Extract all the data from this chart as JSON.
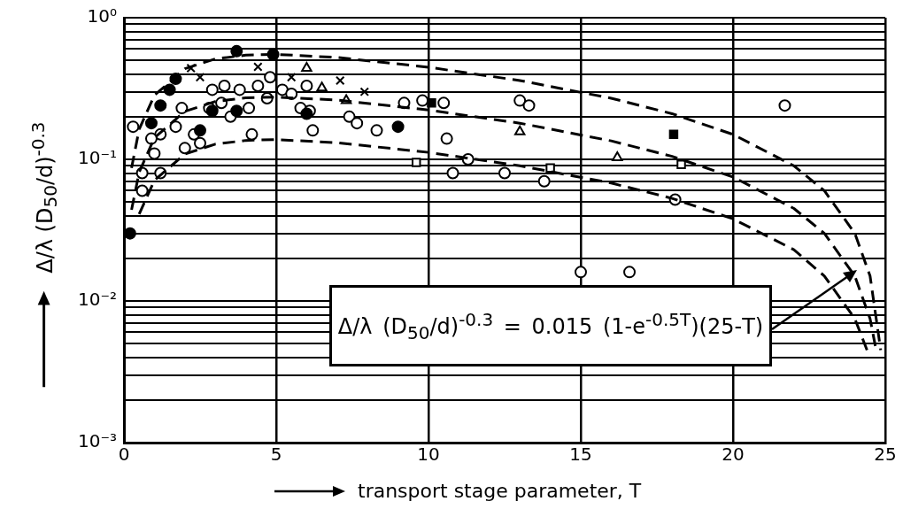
{
  "chart_data": {
    "type": "scatter",
    "xlabel": "transport stage parameter, T",
    "ylabel": "Δ/λ (D$_{50}$/d)$^{-0.3}$",
    "xlim": [
      0,
      25
    ],
    "xticks": [
      0,
      5,
      10,
      15,
      20,
      25
    ],
    "ylim": [
      0.001,
      1
    ],
    "log": "y",
    "grid": true,
    "yticks": [
      {
        "value": 0.001,
        "label": "10⁻³"
      },
      {
        "value": 0.002,
        "label": null
      },
      {
        "value": 0.003,
        "label": null
      },
      {
        "value": 0.004,
        "label": null
      },
      {
        "value": 0.005,
        "label": null
      },
      {
        "value": 0.006,
        "label": null
      },
      {
        "value": 0.007,
        "label": null
      },
      {
        "value": 0.008,
        "label": null
      },
      {
        "value": 0.009,
        "label": null
      },
      {
        "value": 0.01,
        "label": "10⁻²"
      },
      {
        "value": 0.02,
        "label": null
      },
      {
        "value": 0.03,
        "label": null
      },
      {
        "value": 0.04,
        "label": null
      },
      {
        "value": 0.05,
        "label": null
      },
      {
        "value": 0.06,
        "label": null
      },
      {
        "value": 0.07,
        "label": null
      },
      {
        "value": 0.08,
        "label": null
      },
      {
        "value": 0.09,
        "label": null
      },
      {
        "value": 0.1,
        "label": "10⁻¹"
      },
      {
        "value": 0.2,
        "label": null
      },
      {
        "value": 0.3,
        "label": null
      },
      {
        "value": 0.4,
        "label": null
      },
      {
        "value": 0.5,
        "label": null
      },
      {
        "value": 0.6,
        "label": null
      },
      {
        "value": 0.7,
        "label": null
      },
      {
        "value": 0.8,
        "label": null
      },
      {
        "value": 0.9,
        "label": null
      },
      {
        "value": 1,
        "label": "10⁰"
      }
    ],
    "annotations": [
      "Δ/λ (D$_{50}$/d)$^{-0.3}$ = 0.015 (1-e$^{-0.5T}$)(25-T)"
    ],
    "series": [
      {
        "marker": "circle",
        "color": "#ffffff",
        "x": [
          0.3,
          0.6,
          0.6,
          1.2,
          1.0,
          1.2,
          0.9,
          1.7,
          2.0,
          1.9,
          2.3,
          2.5,
          2.8,
          2.9,
          3.2,
          3.3,
          3.5,
          3.8,
          4.1,
          4.2,
          4.4,
          4.7,
          4.8,
          5.2,
          5.5,
          5.8,
          6.1,
          6.0,
          6.2,
          7.4,
          7.65,
          8.3,
          9.2,
          9.8,
          10.5,
          10.6,
          10.8,
          11.3,
          12.5,
          13.8,
          13.0,
          13.3,
          15.0,
          16.6,
          18.1,
          21.7
        ],
        "values": [
          0.17,
          0.08,
          0.06,
          0.08,
          0.11,
          0.15,
          0.14,
          0.17,
          0.12,
          0.23,
          0.15,
          0.13,
          0.23,
          0.31,
          0.25,
          0.33,
          0.2,
          0.31,
          0.23,
          0.15,
          0.33,
          0.27,
          0.38,
          0.31,
          0.29,
          0.23,
          0.22,
          0.33,
          0.16,
          0.2,
          0.18,
          0.16,
          0.25,
          0.26,
          0.25,
          0.14,
          0.08,
          0.1,
          0.08,
          0.07,
          0.26,
          0.24,
          0.016,
          0.016,
          0.052,
          0.24
        ]
      },
      {
        "marker": "circle",
        "color": "#000000",
        "x": [
          0.2,
          0.9,
          1.2,
          1.5,
          1.7,
          2.5,
          2.9,
          3.7,
          3.7,
          4.9,
          6.0,
          9.0
        ],
        "values": [
          0.03,
          0.18,
          0.24,
          0.31,
          0.37,
          0.16,
          0.22,
          0.22,
          0.58,
          0.55,
          0.21,
          0.17
        ]
      },
      {
        "marker": "cross",
        "color": "#000000",
        "x": [
          2.2,
          2.5,
          4.4,
          5.5,
          7.1,
          7.9
        ],
        "values": [
          0.44,
          0.38,
          0.45,
          0.38,
          0.36,
          0.3
        ]
      },
      {
        "marker": "triangle",
        "color": "#ffffff",
        "x": [
          6.0,
          6.5,
          7.3,
          13.0,
          16.2
        ],
        "values": [
          0.44,
          0.32,
          0.26,
          0.157,
          0.103
        ]
      },
      {
        "marker": "square",
        "color": "#ffffff",
        "x": [
          9.6,
          14.0,
          18.3
        ],
        "values": [
          0.095,
          0.087,
          0.092
        ]
      },
      {
        "marker": "square",
        "color": "#000000",
        "x": [
          10.1,
          18.05
        ],
        "values": [
          0.25,
          0.15
        ]
      },
      {
        "type": "line",
        "line_style": "dashed",
        "color": "#000000",
        "x": [
          0.25,
          0.5,
          1,
          2,
          3,
          4,
          5,
          7,
          10,
          13,
          16,
          18,
          20,
          22,
          23,
          24,
          24.5,
          24.85
        ],
        "values": [
          0.087,
          0.163,
          0.283,
          0.436,
          0.512,
          0.544,
          0.551,
          0.524,
          0.447,
          0.36,
          0.27,
          0.21,
          0.15,
          0.09,
          0.06,
          0.03,
          0.015,
          0.0045
        ]
      },
      {
        "type": "line",
        "line_style": "dashed",
        "color": "#000000",
        "x": [
          0.25,
          0.5,
          1,
          2,
          3,
          4,
          5,
          7,
          10,
          13,
          16,
          18,
          20,
          22,
          23,
          24,
          24.5,
          24.7
        ],
        "values": [
          0.044,
          0.081,
          0.142,
          0.218,
          0.256,
          0.272,
          0.275,
          0.262,
          0.223,
          0.18,
          0.135,
          0.105,
          0.075,
          0.045,
          0.03,
          0.015,
          0.0075,
          0.0045
        ]
      },
      {
        "type": "line",
        "line_style": "dashed",
        "color": "#000000",
        "x": [
          0.5,
          1,
          2,
          3,
          4,
          5,
          7,
          10,
          13,
          16,
          18,
          20,
          22,
          23,
          24,
          24.4
        ],
        "values": [
          0.041,
          0.071,
          0.109,
          0.128,
          0.136,
          0.138,
          0.131,
          0.112,
          0.09,
          0.068,
          0.053,
          0.038,
          0.023,
          0.015,
          0.0075,
          0.0045
        ]
      }
    ]
  }
}
